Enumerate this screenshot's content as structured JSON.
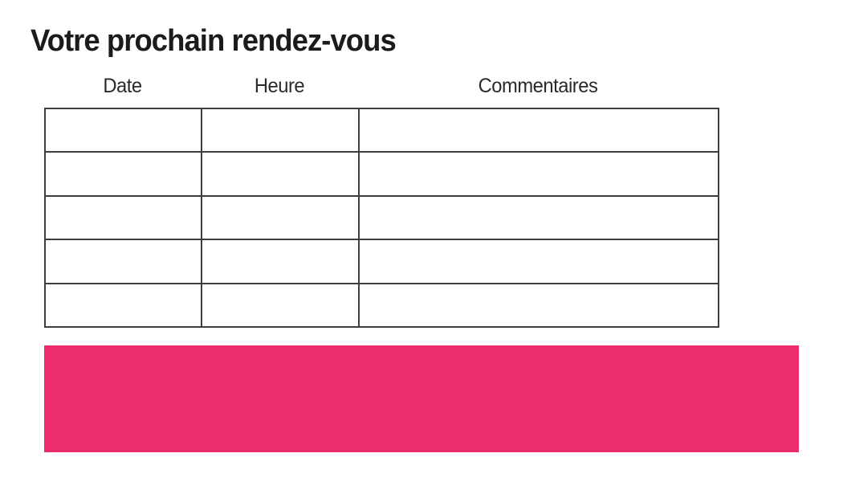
{
  "page": {
    "title": "Votre prochain rendez-vous"
  },
  "table": {
    "headers": [
      "Date",
      "Heure",
      "Commentaires"
    ],
    "rows": [
      [
        "",
        "",
        ""
      ],
      [
        "",
        "",
        ""
      ],
      [
        "",
        "",
        ""
      ],
      [
        "",
        "",
        ""
      ],
      [
        "",
        "",
        ""
      ]
    ]
  },
  "colors": {
    "banner": "#ED2D6B",
    "table_border": "#3d3d3d",
    "text": "#1b1b1b"
  }
}
